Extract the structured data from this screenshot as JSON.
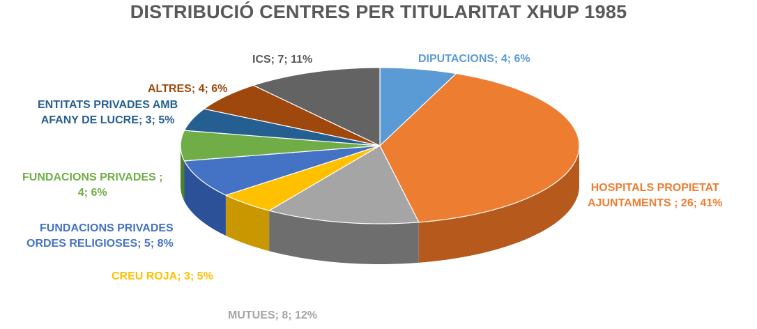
{
  "chart_data": {
    "type": "pie",
    "title": "DISTRIBUCIÓ CENTRES PER TITULARITAT XHUP 1985",
    "slices": [
      {
        "name": "DIPUTACIONS",
        "value": 4,
        "percent": "6%",
        "label": "DIPUTACIONS; 4; 6%",
        "color": "#5b9bd5",
        "side": "#3d78ad"
      },
      {
        "name": "HOSPITALS PROPIETAT AJUNTAMENTS",
        "value": 26,
        "percent": "41%",
        "label_line1": "HOSPITALS PROPIETAT",
        "label_line2": "AJUNTAMENTS ; 26; 41%",
        "color": "#ed7d31",
        "side": "#b55a1c"
      },
      {
        "name": "MUTUES",
        "value": 8,
        "percent": "12%",
        "label": "MUTUES; 8; 12%",
        "color": "#a5a5a5",
        "side": "#6e6e6e"
      },
      {
        "name": "CREU ROJA",
        "value": 3,
        "percent": "5%",
        "label": "CREU ROJA; 3; 5%",
        "color": "#ffc000",
        "side": "#c99700"
      },
      {
        "name": "FUNDACIONS PRIVADES ORDES RELIGIOSES",
        "value": 5,
        "percent": "8%",
        "label_line1": "FUNDACIONS PRIVADES",
        "label_line2": "ORDES RELIGIOSES; 5; 8%",
        "color": "#4472c4",
        "side": "#2c5199"
      },
      {
        "name": "FUNDACIONS PRIVADES",
        "value": 4,
        "percent": "6%",
        "label_line1": "FUNDACIONS PRIVADES ;",
        "label_line2": "4; 6%",
        "color": "#70ad47",
        "side": "#4e8030"
      },
      {
        "name": "ENTITATS PRIVADES AMB AFANY DE LUCRE",
        "value": 3,
        "percent": "5%",
        "label_line1": "ENTITATS PRIVADES AMB",
        "label_line2": "AFANY DE LUCRE; 3; 5%",
        "color": "#255e91",
        "side": "#174068"
      },
      {
        "name": "ALTRES",
        "value": 4,
        "percent": "6%",
        "label": "ALTRES; 4; 6%",
        "color": "#9e480e",
        "side": "#6e3008"
      },
      {
        "name": "ICS",
        "value": 7,
        "percent": "11%",
        "label": "ICS; 7; 11%",
        "color": "#636363",
        "side": "#444444"
      }
    ]
  }
}
